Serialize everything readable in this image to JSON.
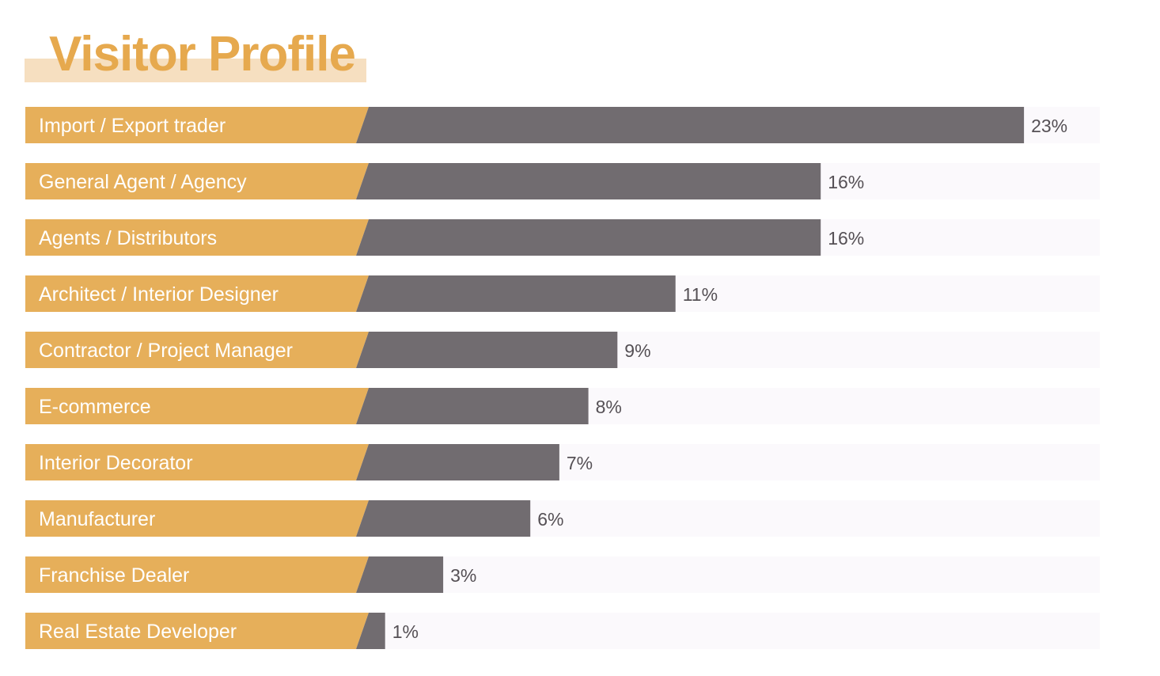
{
  "chart_data": {
    "type": "bar",
    "orientation": "horizontal",
    "title": "Visitor Profile",
    "categories": [
      "Import / Export trader",
      "General Agent / Agency",
      "Agents / Distributors",
      "Architect / Interior Designer",
      "Contractor / Project Manager",
      "E-commerce",
      "Interior Decorator",
      "Manufacturer",
      "Franchise Dealer",
      "Real Estate Developer"
    ],
    "values": [
      23,
      16,
      16,
      11,
      9,
      8,
      7,
      6,
      3,
      1
    ],
    "value_labels": [
      "23%",
      "16%",
      "16%",
      "11%",
      "9%",
      "8%",
      "7%",
      "6%",
      "3%",
      "1%"
    ],
    "unit": "%",
    "xlabel": "",
    "ylabel": "",
    "grid": false,
    "legend": "none"
  },
  "colors": {
    "title": "#e6a94e",
    "title_band": "#f6dfc0",
    "label_box": "#e6af5a",
    "bar": "#716c70",
    "track": "#fbf9fc",
    "value_text": "#555055",
    "label_text": "#ffffff"
  }
}
